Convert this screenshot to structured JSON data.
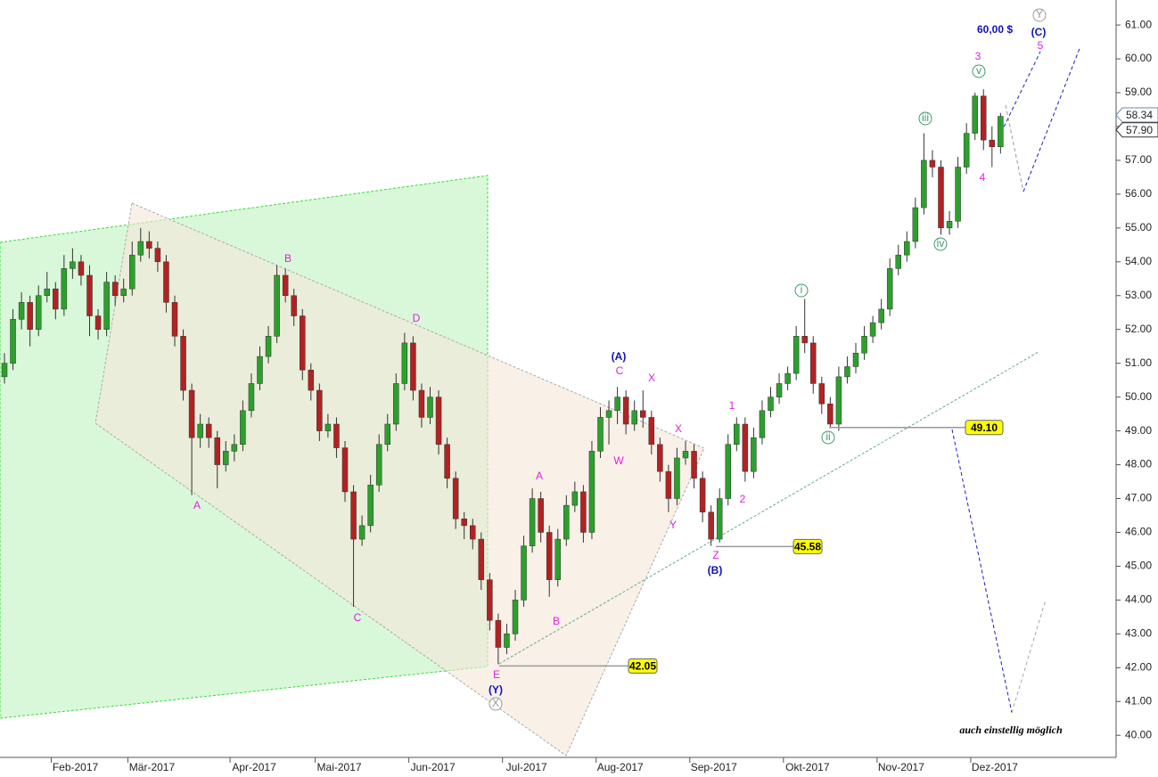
{
  "chart_data": {
    "type": "candlestick",
    "categories": [
      null,
      null,
      null,
      null,
      null,
      null,
      "Feb-2017",
      null,
      null,
      null,
      null,
      null,
      null,
      null,
      null,
      "Mär-2017",
      null,
      null,
      null,
      null,
      null,
      null,
      null,
      null,
      null,
      null,
      null,
      "Apr-2017",
      null,
      null,
      null,
      null,
      null,
      null,
      null,
      null,
      null,
      "Mai-2017",
      null,
      null,
      null,
      null,
      null,
      null,
      null,
      null,
      null,
      null,
      "Jun-2017",
      null,
      null,
      null,
      null,
      null,
      null,
      null,
      null,
      null,
      null,
      "Jul-2017",
      null,
      null,
      null,
      null,
      null,
      null,
      null,
      null,
      null,
      null,
      "Aug-2017",
      null,
      null,
      null,
      null,
      null,
      null,
      null,
      null,
      null,
      null,
      "Sep-2017",
      null,
      null,
      null,
      null,
      null,
      null,
      null,
      null,
      null,
      null,
      "Okt-2017",
      null,
      null,
      null,
      null,
      null,
      null,
      null,
      null,
      null,
      null,
      "Nov-2017",
      null,
      null,
      null,
      null,
      null,
      null,
      null,
      null,
      null,
      null,
      "Dez-2017",
      null,
      null,
      null,
      null,
      null,
      null,
      null,
      null,
      null,
      null,
      null,
      null,
      null,
      null,
      null,
      null
    ],
    "candles": [
      [
        50.6,
        51.3,
        50.4,
        51.0
      ],
      [
        51.0,
        52.6,
        50.8,
        52.3
      ],
      [
        52.3,
        53.1,
        52.0,
        52.8
      ],
      [
        52.8,
        53.0,
        51.5,
        52.0
      ],
      [
        52.0,
        53.3,
        51.8,
        53.0
      ],
      [
        53.0,
        53.7,
        52.8,
        53.2
      ],
      [
        53.2,
        53.4,
        52.3,
        52.6
      ],
      [
        52.6,
        54.2,
        52.4,
        53.8
      ],
      [
        53.8,
        54.4,
        53.5,
        54.0
      ],
      [
        54.0,
        54.2,
        53.3,
        53.6
      ],
      [
        53.6,
        53.9,
        51.8,
        52.4
      ],
      [
        52.4,
        52.6,
        51.7,
        52.0
      ],
      [
        52.0,
        53.7,
        51.8,
        53.4
      ],
      [
        53.4,
        53.6,
        52.7,
        53.0
      ],
      [
        53.0,
        53.5,
        52.8,
        53.2
      ],
      [
        53.2,
        54.6,
        53.0,
        54.2
      ],
      [
        54.2,
        55.0,
        54.0,
        54.6
      ],
      [
        54.6,
        54.9,
        54.1,
        54.4
      ],
      [
        54.4,
        54.6,
        53.7,
        54.0
      ],
      [
        54.0,
        54.2,
        52.5,
        52.8
      ],
      [
        52.8,
        53.0,
        51.5,
        51.8
      ],
      [
        51.8,
        52.0,
        49.9,
        50.2
      ],
      [
        50.2,
        50.4,
        47.1,
        48.8
      ],
      [
        48.8,
        49.5,
        48.5,
        49.2
      ],
      [
        49.2,
        49.4,
        48.5,
        48.8
      ],
      [
        48.8,
        49.0,
        47.3,
        48.0
      ],
      [
        48.0,
        48.7,
        47.8,
        48.4
      ],
      [
        48.4,
        48.9,
        48.1,
        48.6
      ],
      [
        48.6,
        49.9,
        48.4,
        49.6
      ],
      [
        49.6,
        50.7,
        49.4,
        50.4
      ],
      [
        50.4,
        51.5,
        50.2,
        51.2
      ],
      [
        51.2,
        52.1,
        51.0,
        51.8
      ],
      [
        51.8,
        53.9,
        51.6,
        53.6
      ],
      [
        53.6,
        53.8,
        52.8,
        53.0
      ],
      [
        53.0,
        53.2,
        52.1,
        52.4
      ],
      [
        52.4,
        52.6,
        50.5,
        50.8
      ],
      [
        50.8,
        51.0,
        49.9,
        50.2
      ],
      [
        50.2,
        50.4,
        48.7,
        49.0
      ],
      [
        49.0,
        49.5,
        48.8,
        49.2
      ],
      [
        49.2,
        49.4,
        48.2,
        48.5
      ],
      [
        48.5,
        48.7,
        46.9,
        47.2
      ],
      [
        47.2,
        47.4,
        43.8,
        45.8
      ],
      [
        45.8,
        46.5,
        45.6,
        46.2
      ],
      [
        46.2,
        47.7,
        46.0,
        47.4
      ],
      [
        47.4,
        48.9,
        47.2,
        48.6
      ],
      [
        48.6,
        49.5,
        48.4,
        49.2
      ],
      [
        49.2,
        50.7,
        49.0,
        50.4
      ],
      [
        50.4,
        51.9,
        50.2,
        51.6
      ],
      [
        51.6,
        51.8,
        49.9,
        50.2
      ],
      [
        50.2,
        50.4,
        49.1,
        49.4
      ],
      [
        49.4,
        50.3,
        49.2,
        50.0
      ],
      [
        50.0,
        50.2,
        48.3,
        48.6
      ],
      [
        48.6,
        48.8,
        47.3,
        47.6
      ],
      [
        47.6,
        47.8,
        46.1,
        46.4
      ],
      [
        46.4,
        46.6,
        45.8,
        46.2
      ],
      [
        46.2,
        46.4,
        45.5,
        45.8
      ],
      [
        45.8,
        46.0,
        44.3,
        44.6
      ],
      [
        44.6,
        44.8,
        43.1,
        43.4
      ],
      [
        43.4,
        43.6,
        42.1,
        42.6
      ],
      [
        42.6,
        43.3,
        42.4,
        43.0
      ],
      [
        43.0,
        44.3,
        42.8,
        44.0
      ],
      [
        44.0,
        45.9,
        43.8,
        45.6
      ],
      [
        45.6,
        47.3,
        45.4,
        47.0
      ],
      [
        47.0,
        47.2,
        45.7,
        46.0
      ],
      [
        46.0,
        46.2,
        44.1,
        44.6
      ],
      [
        44.6,
        46.1,
        44.4,
        45.8
      ],
      [
        45.8,
        47.1,
        45.6,
        46.8
      ],
      [
        46.8,
        47.5,
        46.6,
        47.2
      ],
      [
        47.2,
        47.4,
        45.7,
        46.0
      ],
      [
        46.0,
        48.7,
        45.8,
        48.4
      ],
      [
        48.4,
        49.7,
        48.2,
        49.4
      ],
      [
        49.4,
        49.9,
        48.6,
        49.6
      ],
      [
        49.6,
        50.3,
        49.2,
        50.0
      ],
      [
        50.0,
        50.2,
        48.9,
        49.2
      ],
      [
        49.2,
        49.9,
        49.0,
        49.6
      ],
      [
        49.6,
        50.2,
        49.1,
        49.4
      ],
      [
        49.4,
        49.6,
        48.3,
        48.6
      ],
      [
        48.6,
        48.8,
        47.5,
        47.8
      ],
      [
        47.8,
        48.0,
        46.6,
        47.0
      ],
      [
        47.0,
        48.5,
        46.8,
        48.2
      ],
      [
        48.2,
        48.7,
        48.0,
        48.4
      ],
      [
        48.4,
        48.6,
        47.3,
        47.6
      ],
      [
        47.6,
        47.8,
        46.3,
        46.6
      ],
      [
        46.6,
        46.8,
        45.6,
        45.8
      ],
      [
        45.8,
        47.3,
        45.7,
        47.0
      ],
      [
        47.0,
        48.9,
        46.8,
        48.6
      ],
      [
        48.6,
        49.4,
        48.4,
        49.2
      ],
      [
        49.2,
        49.4,
        47.5,
        47.8
      ],
      [
        47.8,
        49.1,
        47.6,
        48.8
      ],
      [
        48.8,
        49.9,
        48.6,
        49.6
      ],
      [
        49.6,
        50.3,
        49.4,
        50.0
      ],
      [
        50.0,
        50.7,
        49.8,
        50.4
      ],
      [
        50.4,
        50.9,
        50.2,
        50.7
      ],
      [
        50.7,
        52.1,
        50.5,
        51.8
      ],
      [
        51.8,
        52.9,
        51.3,
        51.6
      ],
      [
        51.6,
        51.8,
        50.1,
        50.4
      ],
      [
        50.4,
        50.6,
        49.5,
        49.8
      ],
      [
        49.8,
        50.0,
        49.1,
        49.2
      ],
      [
        49.2,
        50.9,
        49.0,
        50.6
      ],
      [
        50.6,
        51.2,
        50.4,
        50.9
      ],
      [
        50.9,
        51.6,
        50.7,
        51.3
      ],
      [
        51.3,
        52.1,
        51.1,
        51.8
      ],
      [
        51.8,
        52.4,
        51.6,
        52.2
      ],
      [
        52.2,
        52.9,
        52.0,
        52.6
      ],
      [
        52.6,
        54.1,
        52.4,
        53.8
      ],
      [
        53.8,
        54.5,
        53.6,
        54.2
      ],
      [
        54.2,
        54.9,
        54.0,
        54.6
      ],
      [
        54.6,
        55.9,
        54.4,
        55.6
      ],
      [
        55.6,
        57.8,
        55.4,
        57.0
      ],
      [
        57.0,
        57.3,
        56.5,
        56.8
      ],
      [
        56.8,
        57.0,
        54.8,
        55.0
      ],
      [
        55.0,
        55.5,
        54.8,
        55.2
      ],
      [
        55.2,
        57.1,
        55.0,
        56.8
      ],
      [
        56.8,
        58.1,
        56.6,
        57.8
      ],
      [
        57.8,
        59.0,
        57.6,
        58.9
      ],
      [
        58.9,
        59.1,
        57.3,
        57.6
      ],
      [
        57.6,
        58.0,
        56.8,
        57.4
      ],
      [
        57.4,
        58.4,
        57.2,
        58.3
      ],
      null,
      null,
      null,
      null,
      null,
      null,
      null,
      null,
      null,
      null,
      null,
      null,
      null
    ],
    "up_color": "#2ca02c",
    "down_color": "#b22222",
    "ylim": [
      39.4,
      61.74
    ],
    "yticks": [
      {
        "value": 40,
        "label": "40.00"
      },
      {
        "value": 41,
        "label": "41.00"
      },
      {
        "value": 42,
        "label": "42.00"
      },
      {
        "value": 43,
        "label": "43.00"
      },
      {
        "value": 44,
        "label": "44.00"
      },
      {
        "value": 45,
        "label": "45.00"
      },
      {
        "value": 46,
        "label": "46.00"
      },
      {
        "value": 47,
        "label": "47.00"
      },
      {
        "value": 48,
        "label": "48.00"
      },
      {
        "value": 49,
        "label": "49.00"
      },
      {
        "value": 50,
        "label": "50.00"
      },
      {
        "value": 51,
        "label": "51.00"
      },
      {
        "value": 52,
        "label": "52.00"
      },
      {
        "value": 53,
        "label": "53.00"
      },
      {
        "value": 54,
        "label": "54.00"
      },
      {
        "value": 55,
        "label": "55.00"
      },
      {
        "value": 56,
        "label": "56.00"
      },
      {
        "value": 57,
        "label": "57.00"
      },
      {
        "value": 58,
        "label": "58.00"
      },
      {
        "value": 59,
        "label": "59.00"
      },
      {
        "value": 60,
        "label": "60.00"
      },
      {
        "value": 61,
        "label": "61.00"
      }
    ],
    "levels": [
      {
        "value": 42.05,
        "label": "42.05"
      },
      {
        "value": 45.58,
        "label": "45.58"
      },
      {
        "value": 49.1,
        "label": "49.10"
      }
    ],
    "price_tags": [
      {
        "value": 58.34,
        "label": "58.34"
      },
      {
        "value": 57.9,
        "label": "57.90"
      }
    ],
    "annotations": [
      {
        "text": "B",
        "color": "#e020e0"
      },
      {
        "text": "D",
        "color": "#e020e0"
      },
      {
        "text": "A",
        "color": "#e020e0"
      },
      {
        "text": "C",
        "color": "#e020e0"
      },
      {
        "text": "E",
        "color": "#e020e0"
      },
      {
        "text": "(Y)",
        "color": "#1010c0"
      },
      {
        "text": "X",
        "color": "#999999"
      },
      {
        "text": "A",
        "color": "#e020e0"
      },
      {
        "text": "B",
        "color": "#e020e0"
      },
      {
        "text": "C",
        "color": "#e020e0"
      },
      {
        "text": "(A)",
        "color": "#1010c0"
      },
      {
        "text": "W",
        "color": "#e020e0"
      },
      {
        "text": "X",
        "color": "#e020e0"
      },
      {
        "text": "X",
        "color": "#e020e0"
      },
      {
        "text": "Y",
        "color": "#e020e0"
      },
      {
        "text": "Z",
        "color": "#e020e0"
      },
      {
        "text": "(B)",
        "color": "#1010c0"
      },
      {
        "text": "1",
        "color": "#e020e0"
      },
      {
        "text": "2",
        "color": "#e020e0"
      },
      {
        "text": "i",
        "color": "#3a9a6a"
      },
      {
        "text": "ii",
        "color": "#3a9a6a"
      },
      {
        "text": "iii",
        "color": "#3a9a6a"
      },
      {
        "text": "iv",
        "color": "#3a9a6a"
      },
      {
        "text": "v",
        "color": "#3a9a6a"
      },
      {
        "text": "3",
        "color": "#e020e0"
      },
      {
        "text": "4",
        "color": "#e020e0"
      },
      {
        "text": "5",
        "color": "#e020e0"
      },
      {
        "text": "(C)",
        "color": "#1010c0"
      },
      {
        "text": "Y",
        "color": "#999999"
      },
      {
        "text": "60,00 $",
        "color": "#1010c0"
      },
      {
        "text": "auch einstellig möglich",
        "color": "#000000"
      }
    ]
  }
}
